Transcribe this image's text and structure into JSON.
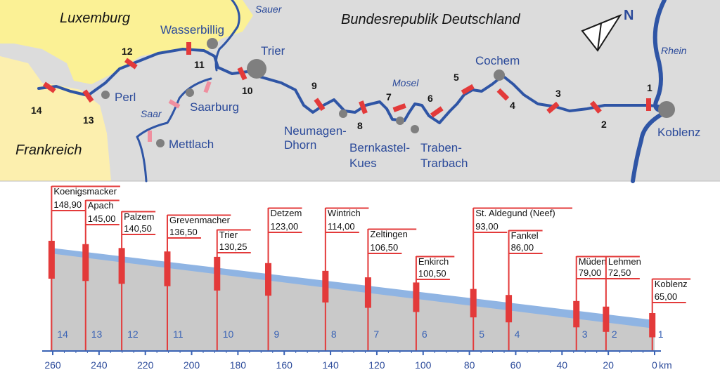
{
  "map": {
    "colors": {
      "land": "#dcdcdc",
      "luxembourg": "#fbf195",
      "france": "#fcefae",
      "river": "#2f55a5",
      "lock": "#e33a3a",
      "lock_saar": "#ef8f9f",
      "city": "#7f7f7f"
    },
    "regions": {
      "luxembourg": "Luxemburg",
      "germany": "Bundesrepublik Deutschland",
      "france": "Frankreich"
    },
    "rivers": {
      "sauer": "Sauer",
      "mosel": "Mosel",
      "saar": "Saar",
      "rhein": "Rhein"
    },
    "compass": "N",
    "cities": {
      "wasserbillig": "Wasserbillig",
      "trier": "Trier",
      "perl": "Perl",
      "saarburg": "Saarburg",
      "mettlach": "Mettlach",
      "neumagen": [
        "Neumagen-",
        "Dhorn"
      ],
      "bernkastel": [
        "Bernkastel-",
        "Kues"
      ],
      "traben": [
        "Traben-",
        "Trarbach"
      ],
      "cochem": "Cochem",
      "koblenz": "Koblenz"
    },
    "lock_numbers": [
      "1",
      "2",
      "3",
      "4",
      "5",
      "6",
      "7",
      "8",
      "9",
      "10",
      "11",
      "12",
      "13",
      "14"
    ]
  },
  "profile": {
    "colors": {
      "ground": "#c9c9c9",
      "water": "#8fb4e3",
      "post": "#e33a3a",
      "axis": "#3a63b5"
    },
    "km_start": 260,
    "km_end": 0,
    "axis_unit": "km",
    "axis_ticks": [
      "260",
      "240",
      "220",
      "200",
      "180",
      "160",
      "140",
      "120",
      "100",
      "80",
      "60",
      "40",
      "20",
      "0"
    ],
    "water_level_km": [
      261,
      0
    ],
    "water_level_m": [
      148.9,
      65.0
    ],
    "locks": [
      {
        "num": "14",
        "name": "Koenigsmacker",
        "level": "148,90",
        "km": 260.5
      },
      {
        "num": "13",
        "name": "Apach",
        "level": "145,00",
        "km": 245.8
      },
      {
        "num": "12",
        "name": "Palzem",
        "level": "140,50",
        "km": 230.2
      },
      {
        "num": "11",
        "name": "Grevenmacher",
        "level": "136,50",
        "km": 210.5
      },
      {
        "num": "10",
        "name": "Trier",
        "level": "130,25",
        "km": 189.0
      },
      {
        "num": "9",
        "name": "Detzem",
        "level": "123,00",
        "km": 166.9
      },
      {
        "num": "8",
        "name": "Wintrich",
        "level": "114,00",
        "km": 142.2
      },
      {
        "num": "7",
        "name": "Zeltingen",
        "level": "106,50",
        "km": 123.8
      },
      {
        "num": "6",
        "name": "Enkirch",
        "level": "100,50",
        "km": 103.0
      },
      {
        "num": "5",
        "name": "St. Aldegund (Neef)",
        "level": "93,00",
        "km": 78.3
      },
      {
        "num": "4",
        "name": "Fankel",
        "level": "86,00",
        "km": 63.0
      },
      {
        "num": "3",
        "name": "Müden",
        "level": "79,00",
        "km": 33.8
      },
      {
        "num": "2",
        "name": "Lehmen",
        "level": "72,50",
        "km": 21.0
      },
      {
        "num": "1",
        "name": "Koblenz",
        "level": "65,00",
        "km": 1.0
      }
    ]
  }
}
